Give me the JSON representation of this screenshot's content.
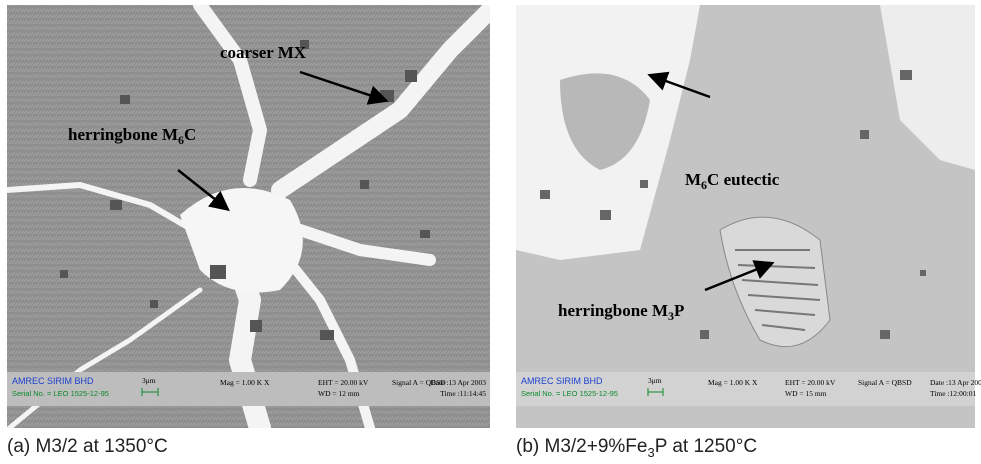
{
  "panels": [
    {
      "annotations": [
        {
          "text": "coarser MX"
        },
        {
          "text": "herringbone M",
          "sub": "6",
          "tail": "C"
        }
      ],
      "info": {
        "org": "AMREC SIRIM BHD",
        "serial": "Serial No. = LEO 1525-12-95",
        "scale": "3μm",
        "mag": "Mag =  1.00 K X",
        "eht": "EHT = 20.00 kV",
        "wd": "WD =  12 mm",
        "signal": "Signal A = QBSD",
        "date": "Date :13 Apr 2003",
        "time": "Time :11:14:45"
      },
      "caption": {
        "text": "(a) M3/2 at 1350°C"
      }
    },
    {
      "annotations": [
        {
          "text": "M",
          "sub": "6",
          "tail": "C eutectic"
        },
        {
          "text": "herringbone M",
          "sub": "3",
          "tail": "P"
        }
      ],
      "info": {
        "org": "AMREC SIRIM BHD",
        "serial": "Serial No. = LEO 1525-12-95",
        "scale": "3μm",
        "mag": "Mag =  1.00 K X",
        "eht": "EHT = 20.00 kV",
        "wd": "WD =  15 mm",
        "signal": "Signal A = QBSD",
        "date": "Date :13 Apr 200",
        "time": "Time :12:00:01"
      },
      "caption": {
        "text": "(b) M3/2+9%Fe",
        "sub": "3",
        "tail": "P at 1250°C"
      }
    }
  ]
}
